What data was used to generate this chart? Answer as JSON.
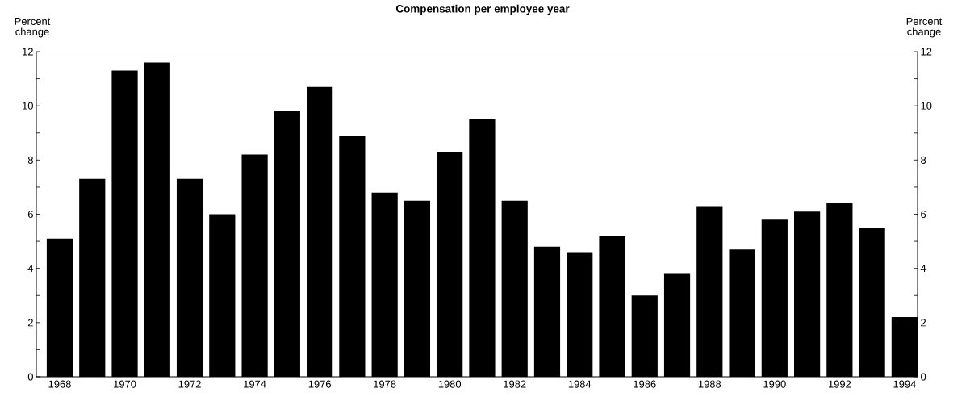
{
  "chart_data": {
    "type": "bar",
    "title": "Compensation per employee year",
    "ylabel": "Percent change",
    "y2label": "Percent change",
    "categories": [
      "1968",
      null,
      "1970",
      null,
      "1972",
      null,
      "1974",
      null,
      "1976",
      null,
      "1978",
      null,
      "1980",
      null,
      "1982",
      null,
      "1984",
      null,
      "1986",
      null,
      "1988",
      null,
      "1990",
      null,
      "1992",
      null,
      "1994"
    ],
    "values": [
      5.1,
      7.3,
      11.3,
      11.6,
      7.3,
      6.0,
      8.2,
      9.8,
      10.7,
      8.9,
      6.8,
      6.5,
      8.3,
      9.5,
      6.5,
      4.8,
      4.6,
      5.2,
      3.0,
      3.8,
      6.3,
      4.7,
      5.8,
      6.1,
      6.4,
      5.5,
      2.2
    ],
    "color": "#000000",
    "ylim": [
      0,
      12
    ],
    "yticks": [
      0,
      {
        "value": 1,
        "label": null
      },
      2,
      {
        "value": 3,
        "label": null
      },
      4,
      {
        "value": 5,
        "label": null
      },
      6,
      {
        "value": 7,
        "label": null
      },
      8,
      {
        "value": 9,
        "label": null
      },
      10,
      {
        "value": 11,
        "label": null
      },
      12
    ],
    "y2lim": [
      0,
      12
    ],
    "y2ticks": [
      0,
      {
        "value": 1,
        "label": null
      },
      2,
      {
        "value": 3,
        "label": null
      },
      4,
      {
        "value": 5,
        "label": null
      },
      6,
      {
        "value": 7,
        "label": null
      },
      8,
      {
        "value": 9,
        "label": null
      },
      10,
      {
        "value": 11,
        "label": null
      },
      12
    ]
  }
}
